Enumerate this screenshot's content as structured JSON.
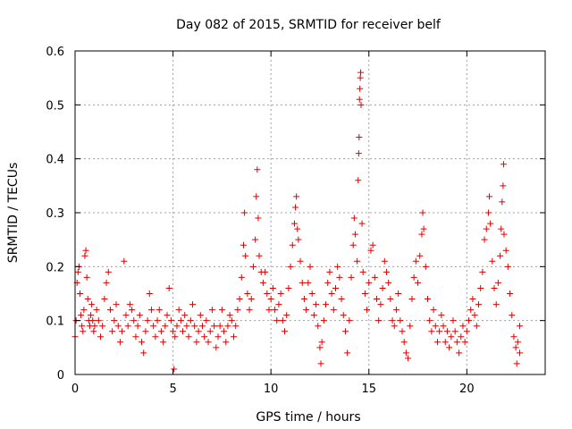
{
  "chart_data": {
    "type": "scatter",
    "title": "Day 082 of 2015, SRMTID for receiver belf",
    "xlabel": "GPS time / hours",
    "ylabel": "SRMTID / TECUs",
    "xlim": [
      0,
      24
    ],
    "ylim": [
      0,
      0.6
    ],
    "xticks": [
      0,
      5,
      10,
      15,
      20
    ],
    "yticks": [
      0,
      0.1,
      0.2,
      0.3,
      0.4,
      0.5,
      0.6
    ],
    "xtick_labels": [
      "0",
      "5",
      "10",
      "15",
      "20"
    ],
    "ytick_labels": [
      "0",
      "0.1",
      "0.2",
      "0.3",
      "0.4",
      "0.5",
      "0.6"
    ],
    "grid": true,
    "marker": "+",
    "color": "#e00000",
    "series": [
      {
        "name": "SRMTID",
        "points": [
          [
            0.0,
            0.07
          ],
          [
            0.05,
            0.1
          ],
          [
            0.1,
            0.17
          ],
          [
            0.15,
            0.19
          ],
          [
            0.2,
            0.2
          ],
          [
            0.25,
            0.15
          ],
          [
            0.3,
            0.11
          ],
          [
            0.35,
            0.09
          ],
          [
            0.4,
            0.08
          ],
          [
            0.45,
            0.12
          ],
          [
            0.5,
            0.22
          ],
          [
            0.55,
            0.23
          ],
          [
            0.6,
            0.18
          ],
          [
            0.65,
            0.14
          ],
          [
            0.7,
            0.1
          ],
          [
            0.75,
            0.09
          ],
          [
            0.8,
            0.11
          ],
          [
            0.85,
            0.13
          ],
          [
            0.9,
            0.1
          ],
          [
            0.95,
            0.08
          ],
          [
            1.0,
            0.09
          ],
          [
            1.1,
            0.12
          ],
          [
            1.2,
            0.1
          ],
          [
            1.3,
            0.07
          ],
          [
            1.4,
            0.09
          ],
          [
            1.5,
            0.14
          ],
          [
            1.6,
            0.17
          ],
          [
            1.7,
            0.19
          ],
          [
            1.8,
            0.12
          ],
          [
            1.9,
            0.08
          ],
          [
            2.0,
            0.1
          ],
          [
            2.1,
            0.13
          ],
          [
            2.2,
            0.09
          ],
          [
            2.3,
            0.06
          ],
          [
            2.4,
            0.08
          ],
          [
            2.5,
            0.21
          ],
          [
            2.6,
            0.11
          ],
          [
            2.7,
            0.09
          ],
          [
            2.8,
            0.13
          ],
          [
            2.9,
            0.12
          ],
          [
            3.0,
            0.1
          ],
          [
            3.1,
            0.07
          ],
          [
            3.2,
            0.09
          ],
          [
            3.3,
            0.11
          ],
          [
            3.4,
            0.06
          ],
          [
            3.5,
            0.04
          ],
          [
            3.6,
            0.08
          ],
          [
            3.7,
            0.1
          ],
          [
            3.8,
            0.15
          ],
          [
            3.9,
            0.12
          ],
          [
            4.0,
            0.09
          ],
          [
            4.1,
            0.07
          ],
          [
            4.2,
            0.1
          ],
          [
            4.3,
            0.12
          ],
          [
            4.4,
            0.08
          ],
          [
            4.5,
            0.06
          ],
          [
            4.6,
            0.09
          ],
          [
            4.7,
            0.11
          ],
          [
            4.8,
            0.16
          ],
          [
            4.9,
            0.1
          ],
          [
            5.0,
            0.08
          ],
          [
            5.05,
            0.01
          ],
          [
            5.1,
            0.07
          ],
          [
            5.2,
            0.09
          ],
          [
            5.3,
            0.12
          ],
          [
            5.4,
            0.1
          ],
          [
            5.5,
            0.08
          ],
          [
            5.6,
            0.11
          ],
          [
            5.7,
            0.09
          ],
          [
            5.8,
            0.07
          ],
          [
            5.9,
            0.1
          ],
          [
            6.0,
            0.13
          ],
          [
            6.1,
            0.09
          ],
          [
            6.2,
            0.06
          ],
          [
            6.3,
            0.08
          ],
          [
            6.4,
            0.11
          ],
          [
            6.5,
            0.09
          ],
          [
            6.6,
            0.07
          ],
          [
            6.7,
            0.1
          ],
          [
            6.8,
            0.06
          ],
          [
            6.9,
            0.08
          ],
          [
            7.0,
            0.12
          ],
          [
            7.1,
            0.09
          ],
          [
            7.2,
            0.05
          ],
          [
            7.3,
            0.07
          ],
          [
            7.4,
            0.09
          ],
          [
            7.5,
            0.12
          ],
          [
            7.6,
            0.08
          ],
          [
            7.7,
            0.06
          ],
          [
            7.8,
            0.09
          ],
          [
            7.9,
            0.11
          ],
          [
            8.0,
            0.1
          ],
          [
            8.1,
            0.07
          ],
          [
            8.2,
            0.09
          ],
          [
            8.3,
            0.12
          ],
          [
            8.4,
            0.14
          ],
          [
            8.5,
            0.18
          ],
          [
            8.6,
            0.24
          ],
          [
            8.65,
            0.3
          ],
          [
            8.7,
            0.22
          ],
          [
            8.8,
            0.15
          ],
          [
            8.9,
            0.12
          ],
          [
            9.0,
            0.14
          ],
          [
            9.1,
            0.2
          ],
          [
            9.2,
            0.25
          ],
          [
            9.25,
            0.33
          ],
          [
            9.3,
            0.38
          ],
          [
            9.35,
            0.29
          ],
          [
            9.4,
            0.22
          ],
          [
            9.5,
            0.19
          ],
          [
            9.6,
            0.17
          ],
          [
            9.7,
            0.19
          ],
          [
            9.8,
            0.15
          ],
          [
            9.9,
            0.12
          ],
          [
            10.0,
            0.14
          ],
          [
            10.1,
            0.16
          ],
          [
            10.2,
            0.12
          ],
          [
            10.3,
            0.1
          ],
          [
            10.4,
            0.13
          ],
          [
            10.5,
            0.15
          ],
          [
            10.6,
            0.1
          ],
          [
            10.7,
            0.08
          ],
          [
            10.8,
            0.11
          ],
          [
            10.9,
            0.16
          ],
          [
            11.0,
            0.2
          ],
          [
            11.1,
            0.24
          ],
          [
            11.2,
            0.28
          ],
          [
            11.25,
            0.31
          ],
          [
            11.3,
            0.33
          ],
          [
            11.35,
            0.27
          ],
          [
            11.4,
            0.25
          ],
          [
            11.5,
            0.21
          ],
          [
            11.6,
            0.17
          ],
          [
            11.7,
            0.14
          ],
          [
            11.8,
            0.12
          ],
          [
            11.9,
            0.17
          ],
          [
            12.0,
            0.2
          ],
          [
            12.1,
            0.15
          ],
          [
            12.2,
            0.11
          ],
          [
            12.3,
            0.13
          ],
          [
            12.4,
            0.09
          ],
          [
            12.5,
            0.05
          ],
          [
            12.55,
            0.02
          ],
          [
            12.6,
            0.06
          ],
          [
            12.7,
            0.1
          ],
          [
            12.8,
            0.13
          ],
          [
            12.9,
            0.17
          ],
          [
            13.0,
            0.19
          ],
          [
            13.1,
            0.15
          ],
          [
            13.2,
            0.12
          ],
          [
            13.3,
            0.16
          ],
          [
            13.4,
            0.2
          ],
          [
            13.5,
            0.18
          ],
          [
            13.6,
            0.14
          ],
          [
            13.7,
            0.11
          ],
          [
            13.8,
            0.08
          ],
          [
            13.9,
            0.04
          ],
          [
            14.0,
            0.1
          ],
          [
            14.1,
            0.18
          ],
          [
            14.2,
            0.24
          ],
          [
            14.25,
            0.29
          ],
          [
            14.3,
            0.26
          ],
          [
            14.4,
            0.21
          ],
          [
            14.45,
            0.36
          ],
          [
            14.48,
            0.41
          ],
          [
            14.5,
            0.44
          ],
          [
            14.52,
            0.51
          ],
          [
            14.54,
            0.53
          ],
          [
            14.56,
            0.55
          ],
          [
            14.58,
            0.56
          ],
          [
            14.6,
            0.5
          ],
          [
            14.65,
            0.28
          ],
          [
            14.7,
            0.19
          ],
          [
            14.8,
            0.15
          ],
          [
            14.9,
            0.12
          ],
          [
            15.0,
            0.17
          ],
          [
            15.1,
            0.23
          ],
          [
            15.2,
            0.24
          ],
          [
            15.3,
            0.18
          ],
          [
            15.4,
            0.14
          ],
          [
            15.5,
            0.1
          ],
          [
            15.6,
            0.13
          ],
          [
            15.7,
            0.16
          ],
          [
            15.8,
            0.21
          ],
          [
            15.9,
            0.19
          ],
          [
            16.0,
            0.17
          ],
          [
            16.1,
            0.14
          ],
          [
            16.2,
            0.1
          ],
          [
            16.3,
            0.09
          ],
          [
            16.4,
            0.12
          ],
          [
            16.5,
            0.15
          ],
          [
            16.6,
            0.1
          ],
          [
            16.7,
            0.08
          ],
          [
            16.8,
            0.06
          ],
          [
            16.9,
            0.04
          ],
          [
            17.0,
            0.03
          ],
          [
            17.1,
            0.09
          ],
          [
            17.2,
            0.14
          ],
          [
            17.3,
            0.18
          ],
          [
            17.4,
            0.21
          ],
          [
            17.5,
            0.17
          ],
          [
            17.6,
            0.22
          ],
          [
            17.7,
            0.26
          ],
          [
            17.75,
            0.3
          ],
          [
            17.8,
            0.27
          ],
          [
            17.9,
            0.2
          ],
          [
            18.0,
            0.14
          ],
          [
            18.1,
            0.1
          ],
          [
            18.2,
            0.08
          ],
          [
            18.3,
            0.12
          ],
          [
            18.4,
            0.09
          ],
          [
            18.5,
            0.06
          ],
          [
            18.6,
            0.08
          ],
          [
            18.7,
            0.11
          ],
          [
            18.8,
            0.09
          ],
          [
            18.9,
            0.06
          ],
          [
            19.0,
            0.08
          ],
          [
            19.1,
            0.05
          ],
          [
            19.2,
            0.07
          ],
          [
            19.3,
            0.1
          ],
          [
            19.4,
            0.08
          ],
          [
            19.5,
            0.06
          ],
          [
            19.6,
            0.04
          ],
          [
            19.7,
            0.07
          ],
          [
            19.8,
            0.09
          ],
          [
            19.9,
            0.06
          ],
          [
            20.0,
            0.08
          ],
          [
            20.1,
            0.1
          ],
          [
            20.2,
            0.12
          ],
          [
            20.3,
            0.14
          ],
          [
            20.4,
            0.11
          ],
          [
            20.5,
            0.09
          ],
          [
            20.6,
            0.13
          ],
          [
            20.7,
            0.16
          ],
          [
            20.8,
            0.19
          ],
          [
            20.9,
            0.25
          ],
          [
            21.0,
            0.27
          ],
          [
            21.1,
            0.3
          ],
          [
            21.15,
            0.33
          ],
          [
            21.2,
            0.28
          ],
          [
            21.3,
            0.21
          ],
          [
            21.4,
            0.16
          ],
          [
            21.5,
            0.13
          ],
          [
            21.6,
            0.17
          ],
          [
            21.7,
            0.22
          ],
          [
            21.75,
            0.27
          ],
          [
            21.8,
            0.32
          ],
          [
            21.85,
            0.35
          ],
          [
            21.88,
            0.39
          ],
          [
            21.9,
            0.26
          ],
          [
            22.0,
            0.23
          ],
          [
            22.1,
            0.2
          ],
          [
            22.2,
            0.15
          ],
          [
            22.3,
            0.11
          ],
          [
            22.4,
            0.07
          ],
          [
            22.5,
            0.05
          ],
          [
            22.55,
            0.02
          ],
          [
            22.6,
            0.06
          ],
          [
            22.7,
            0.09
          ],
          [
            22.7,
            0.04
          ]
        ]
      }
    ]
  }
}
